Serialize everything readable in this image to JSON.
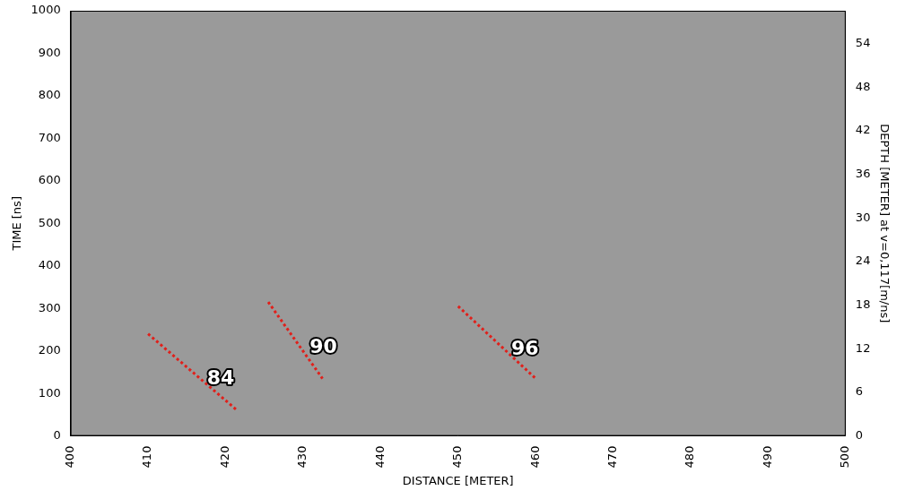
{
  "chart_data": {
    "type": "line",
    "x_label": "DISTANCE [METER]",
    "y_label": "TIME [ns]",
    "y2_label": "DEPTH [METER] at v=0,117[m/ns]",
    "xlim": [
      400,
      500
    ],
    "xticks": [
      400,
      410,
      420,
      430,
      440,
      450,
      460,
      470,
      480,
      490,
      500
    ],
    "ylim": [
      0,
      1000
    ],
    "yticks": [
      0,
      100,
      200,
      300,
      400,
      500,
      600,
      700,
      800,
      900,
      1000
    ],
    "y2lim": [
      0,
      58.5
    ],
    "y2ticks": [
      0,
      6,
      12,
      18,
      24,
      30,
      36,
      42,
      48,
      54
    ],
    "grid": false,
    "series": [
      {
        "name": "84",
        "color": "#e0201b",
        "line_style": "dotted",
        "x": [
          410,
          421.5
        ],
        "values": [
          240,
          60
        ]
      },
      {
        "name": "90",
        "color": "#e0201b",
        "line_style": "dotted",
        "x": [
          425.5,
          432.5
        ],
        "values": [
          315,
          135
        ]
      },
      {
        "name": "96",
        "color": "#e0201b",
        "line_style": "dotted",
        "x": [
          450,
          460
        ],
        "values": [
          305,
          135
        ]
      }
    ]
  }
}
